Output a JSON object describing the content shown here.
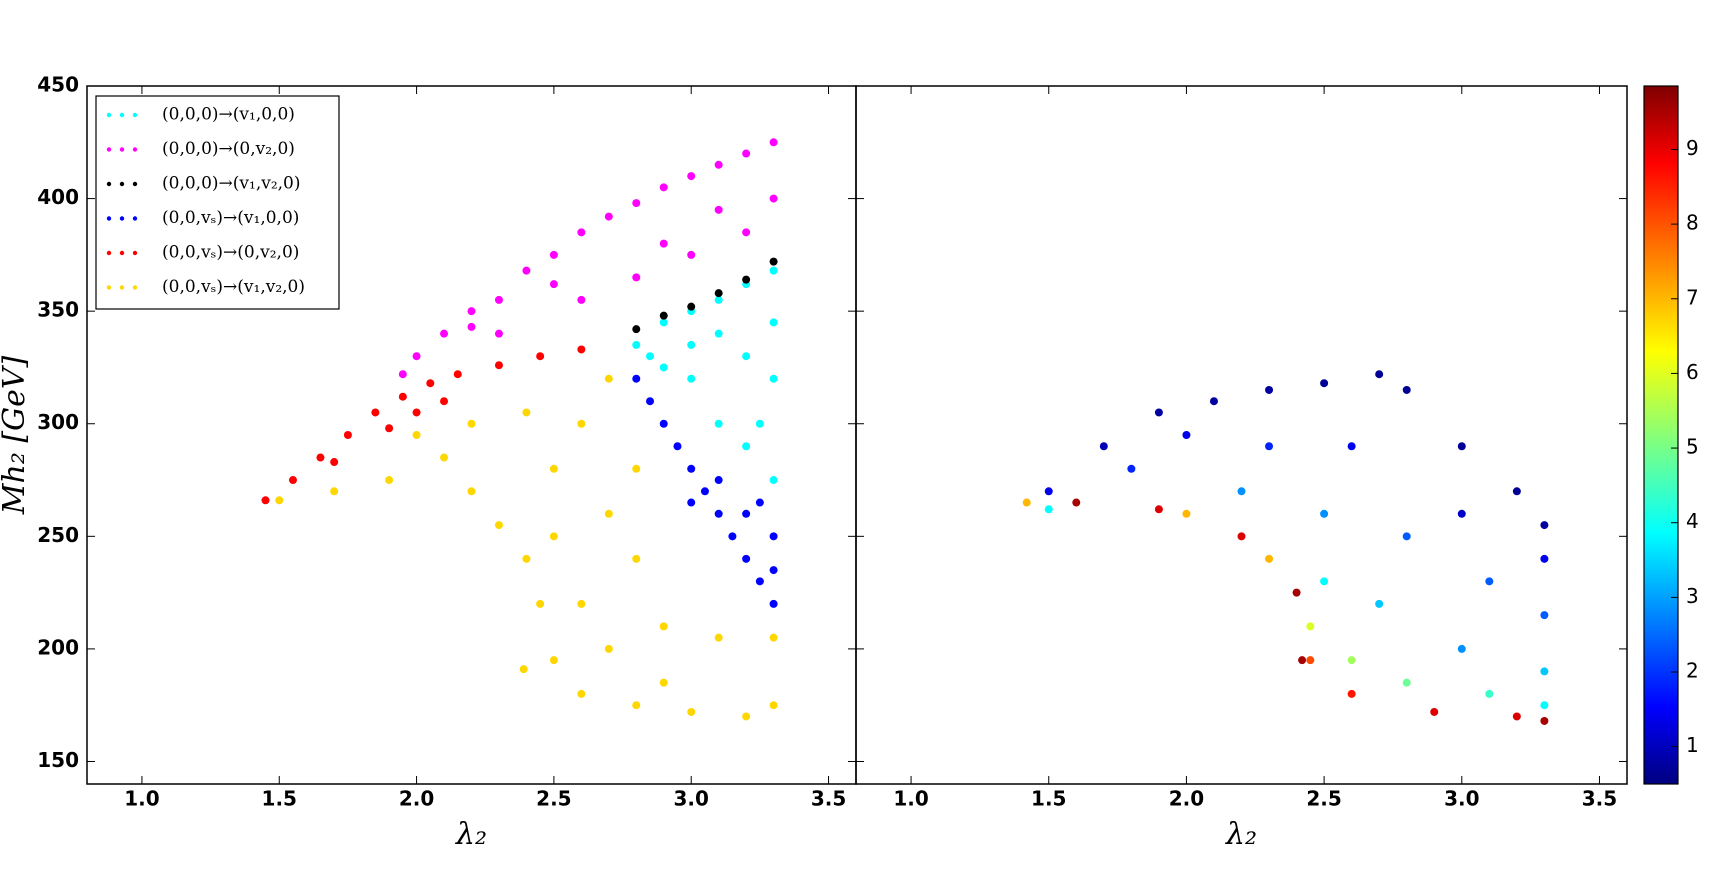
{
  "chart_data": [
    {
      "type": "scatter",
      "xlabel": "λ₂",
      "ylabel": "Mh₂ [GeV]",
      "xlim": [
        0.8,
        3.6
      ],
      "ylim": [
        140,
        450
      ],
      "xticks": [
        {
          "value": 1,
          "label": "1.0"
        },
        1.5,
        {
          "value": 2,
          "label": "2.0"
        },
        2.5,
        {
          "value": 3,
          "label": "3.0"
        },
        3.5
      ],
      "yticks": [
        150,
        200,
        250,
        300,
        350,
        400,
        450
      ],
      "legend": "upper left",
      "series": [
        {
          "name": "(0,0,0)→(v₁,0,0)",
          "color": "#00ffff",
          "x": [
            2.8,
            2.9,
            3.0,
            3.1,
            3.2,
            3.3,
            2.9,
            3.0,
            3.1,
            3.2,
            3.3,
            3.0,
            3.2,
            3.3,
            3.1,
            2.85,
            3.25,
            3.3
          ],
          "values": [
            335,
            345,
            350,
            355,
            362,
            368,
            325,
            320,
            300,
            290,
            275,
            335,
            330,
            320,
            340,
            330,
            300,
            345
          ]
        },
        {
          "name": "(0,0,0)→(0,v₂,0)",
          "color": "#ff00ff",
          "x": [
            1.95,
            2.0,
            2.1,
            2.2,
            2.3,
            2.4,
            2.5,
            2.6,
            2.7,
            2.8,
            2.9,
            3.0,
            3.1,
            3.2,
            3.3,
            2.3,
            2.6,
            2.8,
            3.0,
            3.2,
            3.3,
            3.1,
            2.9,
            2.5,
            2.2
          ],
          "values": [
            322,
            330,
            340,
            350,
            355,
            368,
            375,
            385,
            392,
            398,
            405,
            410,
            415,
            420,
            425,
            340,
            355,
            365,
            375,
            385,
            400,
            395,
            380,
            362,
            343
          ]
        },
        {
          "name": "(0,0,0)→(v₁,v₂,0)",
          "color": "#000000",
          "x": [
            2.8,
            2.9,
            3.0,
            3.1,
            3.2,
            3.3
          ],
          "values": [
            342,
            348,
            352,
            358,
            364,
            372
          ]
        },
        {
          "name": "(0,0,vₛ)→(v₁,0,0)",
          "color": "#0000ff",
          "x": [
            2.8,
            2.85,
            2.9,
            2.95,
            3.0,
            3.05,
            3.1,
            3.15,
            3.2,
            3.25,
            3.3,
            3.2,
            3.3,
            3.1,
            3.3,
            3.0,
            3.25
          ],
          "values": [
            320,
            310,
            300,
            290,
            280,
            270,
            260,
            250,
            240,
            230,
            220,
            260,
            250,
            275,
            235,
            265,
            265
          ]
        },
        {
          "name": "(0,0,vₛ)→(0,v₂,0)",
          "color": "#ff0000",
          "x": [
            1.45,
            1.55,
            1.65,
            1.75,
            1.85,
            1.95,
            2.05,
            2.15,
            2.3,
            2.45,
            2.6,
            1.9,
            2.0,
            1.7,
            2.1
          ],
          "values": [
            266,
            275,
            285,
            295,
            305,
            312,
            318,
            322,
            326,
            330,
            333,
            298,
            305,
            283,
            310
          ]
        },
        {
          "name": "(0,0,vₛ)→(v₁,v₂,0)",
          "color": "#ffd700",
          "x": [
            1.5,
            1.7,
            1.9,
            2.1,
            2.2,
            2.3,
            2.4,
            2.45,
            2.5,
            2.6,
            2.8,
            3.0,
            3.2,
            3.3,
            2.5,
            2.6,
            2.7,
            2.4,
            2.2,
            2.0,
            2.7,
            2.8,
            2.9,
            3.1,
            3.3,
            2.6,
            2.7,
            2.9,
            2.5,
            2.8,
            2.39
          ],
          "values": [
            266,
            270,
            275,
            285,
            270,
            255,
            240,
            220,
            195,
            180,
            175,
            172,
            170,
            175,
            250,
            300,
            320,
            305,
            300,
            295,
            260,
            240,
            210,
            205,
            205,
            220,
            200,
            185,
            280,
            280,
            191
          ]
        }
      ]
    },
    {
      "type": "colorscatter",
      "xlabel": "λ₂",
      "xlim": [
        0.8,
        3.6
      ],
      "ylim": [
        140,
        450
      ],
      "xticks": [
        {
          "value": 1,
          "label": "1.0"
        },
        1.5,
        {
          "value": 2,
          "label": "2.0"
        },
        2.5,
        {
          "value": 3,
          "label": "3.0"
        },
        3.5
      ],
      "colormap": "jet",
      "clim": [
        0.5,
        9.85
      ],
      "cticks": [
        1,
        2,
        3,
        4,
        5,
        6,
        7,
        8,
        9
      ],
      "x": [
        1.5,
        1.7,
        1.9,
        2.1,
        2.3,
        2.5,
        2.7,
        2.8,
        3.0,
        3.2,
        3.3,
        2.0,
        2.3,
        2.6,
        3.0,
        3.3,
        1.8,
        2.2,
        2.5,
        2.8,
        3.1,
        3.3,
        2.5,
        2.7,
        3.0,
        3.3,
        2.45,
        2.6,
        2.8,
        3.1,
        3.3,
        2.45,
        2.6,
        2.9,
        3.2,
        3.3,
        1.6,
        1.9,
        2.2,
        2.4,
        2.42,
        1.42,
        2.0,
        2.3,
        1.5
      ],
      "values": [
        270,
        290,
        305,
        310,
        315,
        318,
        322,
        315,
        290,
        270,
        255,
        295,
        290,
        290,
        260,
        240,
        280,
        270,
        260,
        250,
        230,
        215,
        230,
        220,
        200,
        190,
        210,
        195,
        185,
        180,
        175,
        195,
        180,
        172,
        170,
        168,
        265,
        262,
        250,
        225,
        195,
        265,
        260,
        240,
        262
      ],
      "color_values": [
        1.5,
        1,
        0.8,
        0.8,
        0.8,
        0.7,
        0.7,
        0.7,
        0.7,
        0.7,
        0.8,
        1.5,
        2,
        1.5,
        1.2,
        1.5,
        2,
        3,
        3,
        2.5,
        2.5,
        2.5,
        4,
        3.5,
        3,
        3.5,
        6,
        5.5,
        5,
        4.5,
        4,
        8,
        8.5,
        9,
        9,
        9.5,
        9.5,
        9,
        9,
        9.5,
        9.5,
        7,
        7,
        7,
        4
      ]
    }
  ]
}
